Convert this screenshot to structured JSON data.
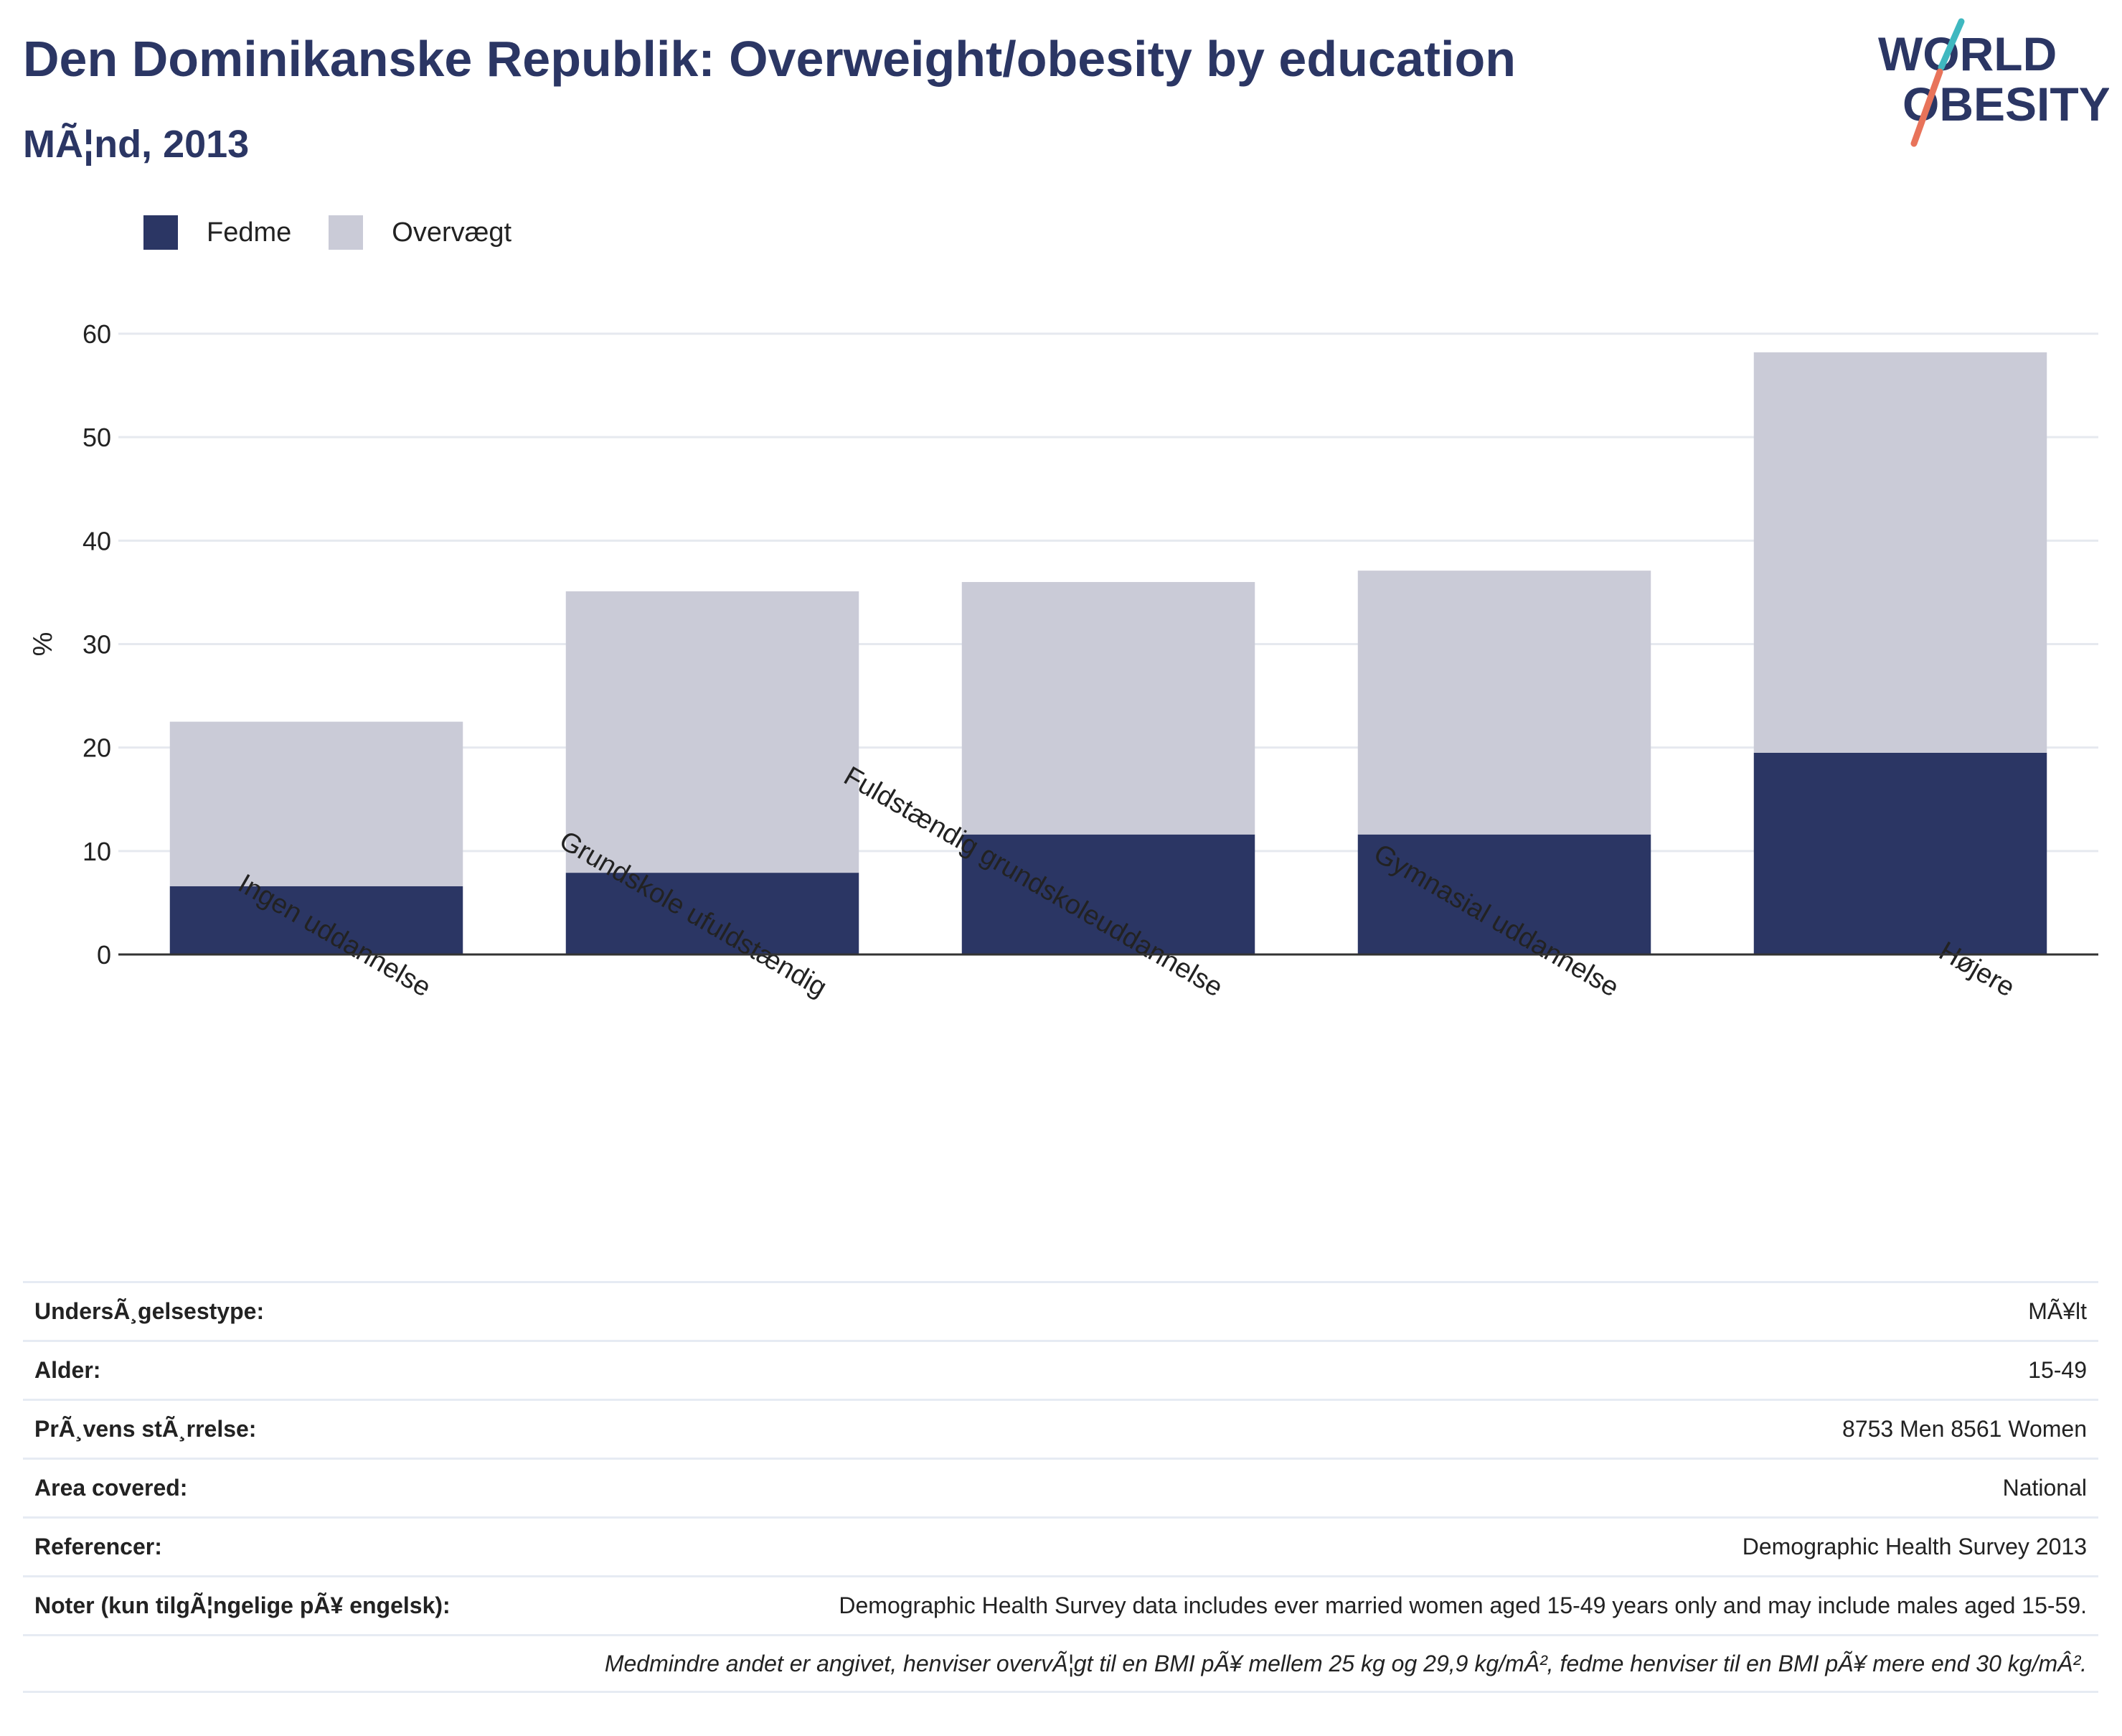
{
  "header": {
    "title": "Den Dominikanske Republik: Overweight/obesity by education",
    "subtitle": "MÃ¦nd, 2013",
    "logo_line1": "WORLD",
    "logo_line2": "OBESITY"
  },
  "legend": [
    {
      "label": "Fedme",
      "color": "#2b3664"
    },
    {
      "label": "Overvægt",
      "color": "#cacbd7"
    }
  ],
  "chart_data": {
    "type": "bar",
    "stacked": true,
    "categories": [
      "Ingen uddannelse",
      "Grundskole ufuldstændig",
      "Fuldstændig grundskoleuddannelse",
      "Gymnasial uddannelse",
      "Højere"
    ],
    "series": [
      {
        "name": "Fedme",
        "color": "#2b3664",
        "values": [
          6.6,
          7.9,
          11.6,
          11.6,
          19.5
        ]
      },
      {
        "name": "Overvægt",
        "color": "#cacbd7",
        "values": [
          15.9,
          27.2,
          24.4,
          25.5,
          38.7
        ]
      }
    ],
    "ylabel": "%",
    "ylim": [
      0,
      60
    ],
    "yticks": [
      0,
      10,
      20,
      30,
      40,
      50,
      60
    ],
    "grid": true,
    "legend_position": "top-left"
  },
  "info_table": [
    {
      "key": "UndersÃ¸gelsestype:",
      "value": "MÃ¥lt"
    },
    {
      "key": "Alder:",
      "value": "15-49"
    },
    {
      "key": "PrÃ¸vens stÃ¸rrelse:",
      "value": "8753 Men 8561 Women"
    },
    {
      "key": "Area covered:",
      "value": "National"
    },
    {
      "key": "Referencer:",
      "value": "Demographic Health Survey 2013"
    },
    {
      "key": "Noter (kun tilgÃ¦ngelige pÃ¥ engelsk):",
      "value": "Demographic Health Survey data includes ever married women aged 15-49 years only and may include males aged 15-59."
    }
  ],
  "footnote": "Medmindre andet er angivet, henviser overvÃ¦gt til en BMI pÃ¥ mellem 25 kg og 29,9 kg/mÂ², fedme henviser til en BMI pÃ¥ mere end 30 kg/mÂ²."
}
